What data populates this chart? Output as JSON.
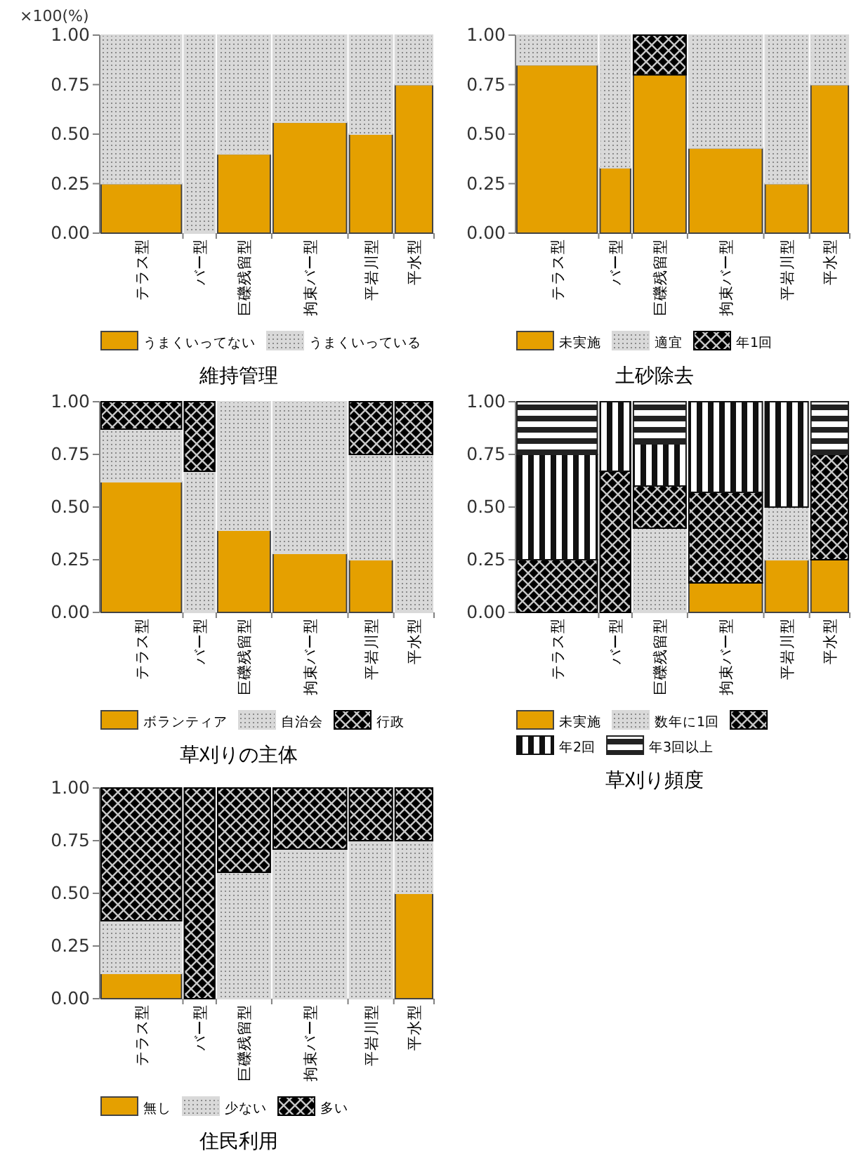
{
  "chart_data": [
    {
      "type": "bar",
      "stacked": true,
      "title": "維持管理",
      "ylabel": "×100(%)",
      "legend": "bottom",
      "categories": [
        "テラス型",
        "バー型",
        "巨礫残留型",
        "拘束バー型",
        "平岩川型",
        "平水型"
      ],
      "ylim": [
        0,
        1
      ],
      "yticks": [
        {
          "value": 0,
          "label": "0.00"
        },
        {
          "value": 0.25,
          "label": "0.25"
        },
        {
          "value": 0.5,
          "label": "0.50"
        },
        {
          "value": 0.75,
          "label": "0.75"
        },
        {
          "value": 1,
          "label": "1.00"
        }
      ],
      "series": [
        {
          "name": "うまくいってない",
          "color": "#e5a000",
          "values": [
            0.25,
            0,
            0.4,
            0.56,
            0.5,
            0.75
          ]
        },
        {
          "name": "うまくいっている",
          "color": "#d9d9d9",
          "values": [
            0.75,
            1,
            0.6,
            0.44,
            0.5,
            0.25
          ]
        }
      ]
    },
    {
      "type": "bar",
      "stacked": true,
      "title": "土砂除去",
      "legend": "bottom",
      "categories": [
        "テラス型",
        "バー型",
        "巨礫残留型",
        "拘束バー型",
        "平岩川型",
        "平水型"
      ],
      "ylim": [
        0,
        1
      ],
      "yticks": [
        {
          "value": 0,
          "label": "0.00"
        },
        {
          "value": 0.25,
          "label": "0.25"
        },
        {
          "value": 0.5,
          "label": "0.50"
        },
        {
          "value": 0.75,
          "label": "0.75"
        },
        {
          "value": 1,
          "label": "1.00"
        }
      ],
      "series": [
        {
          "name": "未実施",
          "color": "#e5a000",
          "values": [
            0.85,
            0.33,
            0.8,
            0.43,
            0.25,
            0.75
          ]
        },
        {
          "name": "適宜",
          "color": "#d9d9d9",
          "values": [
            0.15,
            0.67,
            0,
            0.57,
            0.75,
            0.25
          ]
        },
        {
          "name": "年1回",
          "color": "#000000",
          "values": [
            0,
            0,
            0.2,
            0,
            0,
            0
          ]
        }
      ]
    },
    {
      "type": "bar",
      "stacked": true,
      "title": "草刈りの主体",
      "legend": "bottom",
      "categories": [
        "テラス型",
        "バー型",
        "巨礫残留型",
        "拘束バー型",
        "平岩川型",
        "平水型"
      ],
      "ylim": [
        0,
        1
      ],
      "yticks": [
        {
          "value": 0,
          "label": "0.00"
        },
        {
          "value": 0.25,
          "label": "0.25"
        },
        {
          "value": 0.5,
          "label": "0.50"
        },
        {
          "value": 0.75,
          "label": "0.75"
        },
        {
          "value": 1,
          "label": "1.00"
        }
      ],
      "series": [
        {
          "name": "ボランティア",
          "color": "#e5a000",
          "values": [
            0.62,
            0,
            0.39,
            0.28,
            0.25,
            0
          ]
        },
        {
          "name": "自治会",
          "color": "#d9d9d9",
          "values": [
            0.25,
            0.67,
            0.61,
            0.72,
            0.5,
            0.75
          ]
        },
        {
          "name": "行政",
          "color": "#000000",
          "values": [
            0.13,
            0.33,
            0,
            0,
            0.25,
            0.25
          ]
        }
      ]
    },
    {
      "type": "bar",
      "stacked": true,
      "title": "草刈り頻度",
      "legend": "bottom",
      "categories": [
        "テラス型",
        "バー型",
        "巨礫残留型",
        "拘束バー型",
        "平岩川型",
        "平水型"
      ],
      "ylim": [
        0,
        1
      ],
      "yticks": [
        {
          "value": 0,
          "label": "0.00"
        },
        {
          "value": 0.25,
          "label": "0.25"
        },
        {
          "value": 0.5,
          "label": "0.50"
        },
        {
          "value": 0.75,
          "label": "0.75"
        },
        {
          "value": 1,
          "label": "1.00"
        }
      ],
      "series": [
        {
          "name": "未実施",
          "color": "#e5a000",
          "values": [
            0,
            0,
            0,
            0.14,
            0.25,
            0.25
          ]
        },
        {
          "name": "数年に1回",
          "color": "#d9d9d9",
          "values": [
            0,
            0,
            0.4,
            0,
            0.25,
            0
          ]
        },
        {
          "color": "#000000",
          "values": [
            0.25,
            0.67,
            0.2,
            0.43,
            0,
            0.5
          ]
        },
        {
          "name": "年2回",
          "color": "#111111",
          "values": [
            0.5,
            0.33,
            0.2,
            0.43,
            0.5,
            0
          ]
        },
        {
          "name": "年3回以上",
          "color": "#222222",
          "values": [
            0.25,
            0,
            0.2,
            0,
            0,
            0.25
          ]
        }
      ]
    },
    {
      "type": "bar",
      "stacked": true,
      "title": "住民利用",
      "legend": "bottom",
      "categories": [
        "テラス型",
        "バー型",
        "巨礫残留型",
        "拘束バー型",
        "平岩川型",
        "平水型"
      ],
      "ylim": [
        0,
        1
      ],
      "yticks": [
        {
          "value": 0,
          "label": "0.00"
        },
        {
          "value": 0.25,
          "label": "0.25"
        },
        {
          "value": 0.5,
          "label": "0.50"
        },
        {
          "value": 0.75,
          "label": "0.75"
        },
        {
          "value": 1,
          "label": "1.00"
        }
      ],
      "series": [
        {
          "name": "無し",
          "color": "#e5a000",
          "values": [
            0.12,
            0,
            0,
            0,
            0,
            0.5
          ]
        },
        {
          "name": "少ない",
          "color": "#d9d9d9",
          "values": [
            0.25,
            0,
            0.6,
            0.71,
            0.75,
            0.25
          ]
        },
        {
          "name": "多い",
          "color": "#000000",
          "values": [
            0.63,
            1,
            0.4,
            0.29,
            0.25,
            0.25
          ]
        }
      ]
    }
  ]
}
